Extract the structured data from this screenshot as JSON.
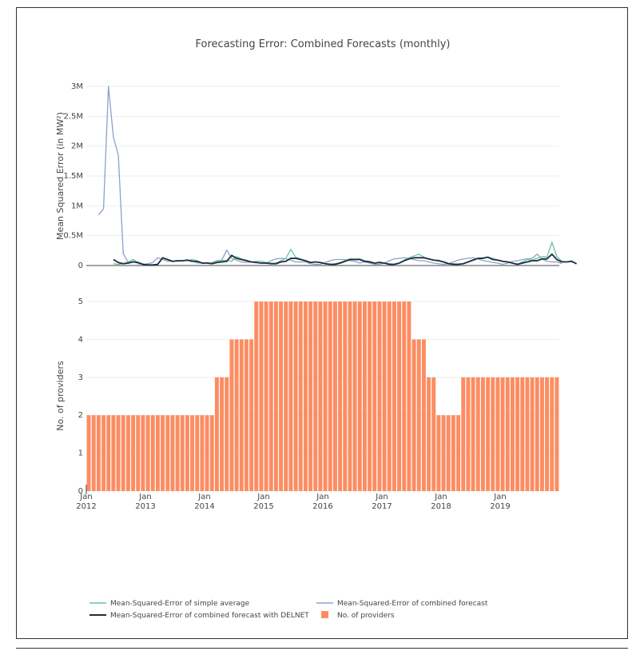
{
  "chart_data": [
    {
      "type": "line",
      "title": "Forecasting Error: Combined Forecasts (monthly)",
      "ylabel": "Mean Squared Error (in MW²)",
      "xlabel": "",
      "x_start": "2012-01",
      "x_count": 96,
      "ylim": [
        0,
        3000000
      ],
      "yticks": [
        0,
        500000,
        1000000,
        1500000,
        2000000,
        2500000,
        3000000
      ],
      "ytick_labels": [
        "0",
        "0.5M",
        "1M",
        "1.5M",
        "2M",
        "2.5M",
        "3M"
      ],
      "grid": true,
      "colors": {
        "simple": "#66c2a5",
        "combined": "#8da0cb",
        "delnet": "#1f2d3d"
      },
      "series": [
        {
          "name": "Mean-Squared-Error of simple average",
          "start_index": 5,
          "values": [
            30000,
            20000,
            30000,
            60000,
            100000,
            50000,
            20000,
            10000,
            10000,
            20000,
            130000,
            100000,
            70000,
            70000,
            80000,
            80000,
            100000,
            80000,
            40000,
            50000,
            40000,
            70000,
            80000,
            90000,
            70000,
            150000,
            110000,
            90000,
            60000,
            70000,
            70000,
            50000,
            40000,
            40000,
            80000,
            120000,
            270000,
            140000,
            110000,
            80000,
            50000,
            60000,
            50000,
            30000,
            20000,
            30000,
            50000,
            80000,
            110000,
            110000,
            110000,
            80000,
            70000,
            40000,
            60000,
            40000,
            30000,
            20000,
            40000,
            90000,
            130000,
            160000,
            190000,
            140000,
            110000,
            90000,
            90000,
            60000,
            40000,
            30000,
            20000,
            30000,
            60000,
            100000,
            120000,
            130000,
            140000,
            120000,
            90000,
            70000,
            60000,
            40000,
            20000,
            60000,
            100000,
            90000,
            120000,
            150000,
            140000,
            390000,
            150000,
            70000,
            60000,
            80000,
            30000
          ]
        },
        {
          "name": "Mean-Squared-Error of combined forecast",
          "start_index": 2,
          "values": [
            850000,
            950000,
            3000000,
            2150000,
            1850000,
            200000,
            50000,
            100000,
            30000,
            20000,
            30000,
            50000,
            130000,
            100000,
            70000,
            70000,
            80000,
            80000,
            90000,
            80000,
            40000,
            50000,
            40000,
            50000,
            80000,
            90000,
            260000,
            120000,
            90000,
            60000,
            50000,
            60000,
            50000,
            40000,
            40000,
            80000,
            110000,
            120000,
            110000,
            90000,
            60000,
            60000,
            60000,
            30000,
            20000,
            20000,
            50000,
            80000,
            100000,
            100000,
            100000,
            80000,
            70000,
            40000,
            60000,
            40000,
            20000,
            20000,
            40000,
            80000,
            110000,
            120000,
            130000,
            120000,
            100000,
            80000,
            80000,
            60000,
            40000,
            30000,
            20000,
            30000,
            60000,
            90000,
            110000,
            120000,
            130000,
            110000,
            80000,
            70000,
            50000,
            40000,
            20000,
            40000,
            70000,
            80000,
            100000,
            110000,
            120000,
            190000,
            110000,
            70000,
            60000,
            60000,
            30000
          ]
        },
        {
          "name": "Mean-Squared-Error of combined forecast with DELNET",
          "start_index": 5,
          "values": [
            100000,
            50000,
            30000,
            40000,
            60000,
            50000,
            20000,
            10000,
            10000,
            20000,
            130000,
            100000,
            70000,
            80000,
            80000,
            90000,
            70000,
            70000,
            40000,
            40000,
            30000,
            50000,
            60000,
            70000,
            170000,
            120000,
            100000,
            80000,
            60000,
            50000,
            40000,
            40000,
            30000,
            30000,
            60000,
            70000,
            120000,
            120000,
            100000,
            80000,
            50000,
            60000,
            50000,
            30000,
            20000,
            20000,
            40000,
            70000,
            100000,
            100000,
            100000,
            70000,
            60000,
            40000,
            50000,
            40000,
            20000,
            20000,
            40000,
            80000,
            110000,
            130000,
            130000,
            130000,
            110000,
            90000,
            80000,
            60000,
            30000,
            20000,
            20000,
            30000,
            60000,
            90000,
            120000,
            120000,
            140000,
            100000,
            90000,
            70000,
            60000,
            40000,
            20000,
            40000,
            60000,
            80000,
            80000,
            110000,
            110000,
            190000,
            100000,
            60000,
            60000,
            70000,
            30000
          ]
        }
      ]
    },
    {
      "type": "bar",
      "ylabel": "No. of providers",
      "xlabel": "",
      "x_start": "2012-01",
      "ylim": [
        0,
        5
      ],
      "yticks": [
        0,
        1,
        2,
        3,
        4,
        5
      ],
      "grid": true,
      "color": "#fc8d62",
      "series": [
        {
          "name": "No. of providers",
          "values": [
            2,
            2,
            2,
            2,
            2,
            2,
            2,
            2,
            2,
            2,
            2,
            2,
            2,
            2,
            2,
            2,
            2,
            2,
            2,
            2,
            2,
            2,
            2,
            2,
            2,
            2,
            3,
            3,
            3,
            4,
            4,
            4,
            4,
            4,
            5,
            5,
            5,
            5,
            5,
            5,
            5,
            5,
            5,
            5,
            5,
            5,
            5,
            5,
            5,
            5,
            5,
            5,
            5,
            5,
            5,
            5,
            5,
            5,
            5,
            5,
            5,
            5,
            5,
            5,
            5,
            5,
            4,
            4,
            4,
            3,
            3,
            2,
            2,
            2,
            2,
            2,
            3,
            3,
            3,
            3,
            3,
            3,
            3,
            3,
            3,
            3,
            3,
            3,
            3,
            3,
            3,
            3,
            3,
            3,
            3,
            3
          ]
        }
      ],
      "xtick_labels": [
        {
          "month": "Jan",
          "year": "2012"
        },
        {
          "month": "Jan",
          "year": "2013"
        },
        {
          "month": "Jan",
          "year": "2014"
        },
        {
          "month": "Jan",
          "year": "2015"
        },
        {
          "month": "Jan",
          "year": "2016"
        },
        {
          "month": "Jan",
          "year": "2017"
        },
        {
          "month": "Jan",
          "year": "2018"
        },
        {
          "month": "Jan",
          "year": "2019"
        }
      ]
    }
  ],
  "legend": {
    "placement": "bottom",
    "items": [
      {
        "label": "Mean-Squared-Error of simple average",
        "kind": "line",
        "color": "#66c2a5"
      },
      {
        "label": "Mean-Squared-Error of combined forecast",
        "kind": "line",
        "color": "#8da0cb"
      },
      {
        "label": "Mean-Squared-Error of combined forecast with DELNET",
        "kind": "line",
        "color": "#1f2d3d"
      },
      {
        "label": "No. of providers",
        "kind": "box",
        "color": "#fc8d62"
      }
    ]
  }
}
